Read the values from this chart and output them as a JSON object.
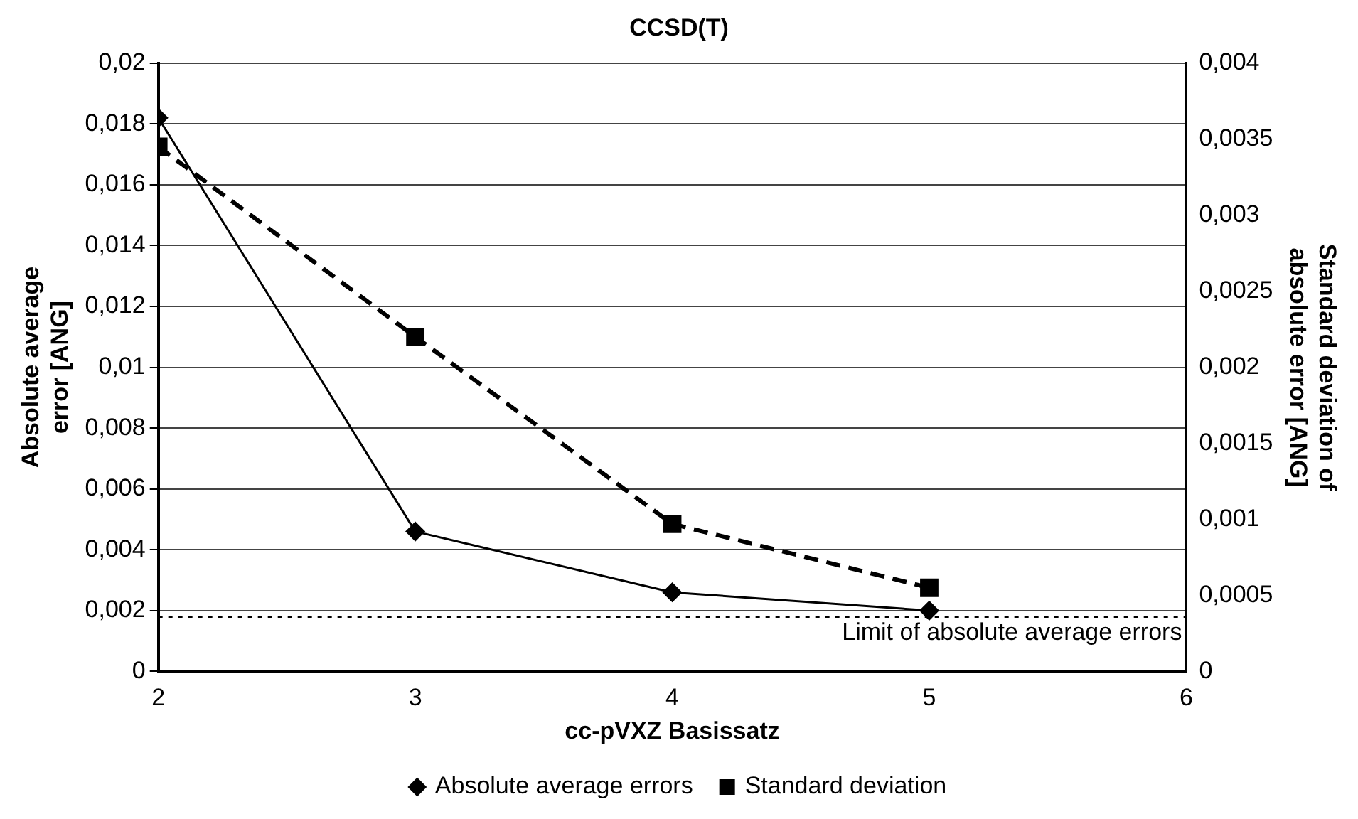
{
  "chart_data": {
    "type": "line",
    "title": "CCSD(T)",
    "xlabel": "cc-pVXZ Basissatz",
    "ylabel": "Absolute average error [ANG]",
    "y2label": "Standard deviation of absolute error [ANG]",
    "x": [
      2,
      3,
      4,
      5
    ],
    "series": [
      {
        "name": "Absolute average errors",
        "color": "#000000",
        "values": [
          0.0182,
          0.0046,
          0.0026,
          0.002
        ],
        "marker": "diamond",
        "line_style": "solid"
      },
      {
        "name": "Standard deviation",
        "color": "#000000",
        "values": [
          0.00345,
          0.0022,
          0.00097,
          0.00055
        ],
        "axis": "y2",
        "marker": "square",
        "line_style": "dashed"
      }
    ],
    "xlim": [
      2,
      6
    ],
    "xticks": [
      2,
      3,
      4,
      5,
      6
    ],
    "ylim": [
      0,
      0.02
    ],
    "yticks": [
      0,
      {
        "value": 0.002,
        "label": "0,002"
      },
      {
        "value": 0.004,
        "label": "0,004"
      },
      {
        "value": 0.006,
        "label": "0,006"
      },
      {
        "value": 0.008,
        "label": "0,008"
      },
      {
        "value": 0.01,
        "label": "0,01"
      },
      {
        "value": 0.012,
        "label": "0,012"
      },
      {
        "value": 0.014,
        "label": "0,014"
      },
      {
        "value": 0.016,
        "label": "0,016"
      },
      {
        "value": 0.018,
        "label": "0,018"
      },
      {
        "value": 0.02,
        "label": "0,02"
      }
    ],
    "y2lim": [
      0,
      0.004
    ],
    "y2ticks": [
      0,
      {
        "value": 0.0005,
        "label": "0,0005"
      },
      {
        "value": 0.001,
        "label": "0,001"
      },
      {
        "value": 0.0015,
        "label": "0,0015"
      },
      {
        "value": 0.002,
        "label": "0,002"
      },
      {
        "value": 0.0025,
        "label": "0,0025"
      },
      {
        "value": 0.003,
        "label": "0,003"
      },
      {
        "value": 0.0035,
        "label": "0,0035"
      },
      {
        "value": 0.004,
        "label": "0,004"
      }
    ],
    "ref_lines": [
      {
        "axis": "y",
        "value": 0.0018,
        "label": "Limit of absolute average errors",
        "color": "#000000",
        "line_style": "dotted"
      }
    ],
    "grid": "y",
    "legend": "bottom"
  }
}
